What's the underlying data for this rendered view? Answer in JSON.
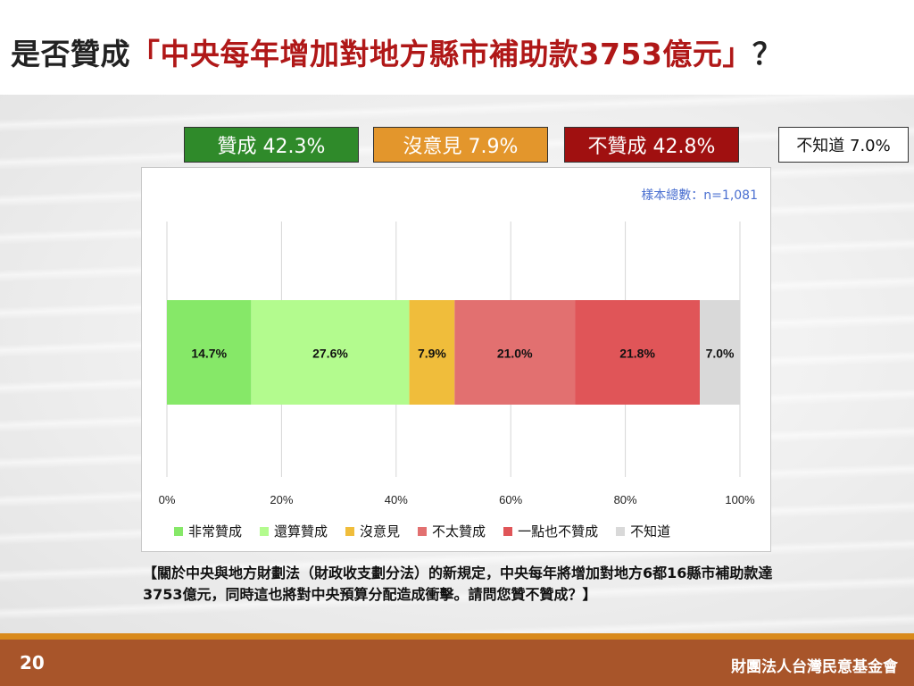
{
  "title": {
    "prefix": "是否贊成",
    "quoted": "「中央每年增加對地方縣市補助款3753億元」",
    "suffix": "？"
  },
  "summary": {
    "agree": "贊成 42.3%",
    "neutral": "沒意見 7.9%",
    "disagree": "不贊成 42.8%",
    "unknown": "不知道 7.0%"
  },
  "sample_size": "樣本總數：n=1,081",
  "question": "【關於中央與地方財劃法（財政收支劃分法）的新規定，中央每年將增加對地方6都16縣市補助款達3753億元，同時這也將對中央預算分配造成衝擊。請問您贊不贊成？】",
  "footer": {
    "page_number": "20",
    "organization": "財團法人台灣民意基金會"
  },
  "colors": {
    "agree_box": "#2f8a2a",
    "neutral_box": "#e3962c",
    "disagree_box": "#a01010"
  },
  "chart_data": {
    "type": "bar",
    "orientation": "horizontal",
    "stacked": true,
    "categories": [
      ""
    ],
    "series": [
      {
        "name": "非常贊成",
        "values": [
          14.7
        ],
        "label": "14.7%",
        "color": "#86e868"
      },
      {
        "name": "還算贊成",
        "values": [
          27.6
        ],
        "label": "27.6%",
        "color": "#b3fb8e"
      },
      {
        "name": "沒意見",
        "values": [
          7.9
        ],
        "label": "7.9%",
        "color": "#f0bd3b"
      },
      {
        "name": "不太贊成",
        "values": [
          21.0
        ],
        "label": "21.0%",
        "color": "#e27070"
      },
      {
        "name": "一點也不贊成",
        "values": [
          21.8
        ],
        "label": "21.8%",
        "color": "#e05558"
      },
      {
        "name": "不知道",
        "values": [
          7.0
        ],
        "label": "7.0%",
        "color": "#d9d9d9"
      }
    ],
    "xlim": [
      0,
      100
    ],
    "xticks": [
      "0%",
      "20%",
      "40%",
      "60%",
      "80%",
      "100%"
    ],
    "grid": true,
    "legend_position": "bottom"
  }
}
